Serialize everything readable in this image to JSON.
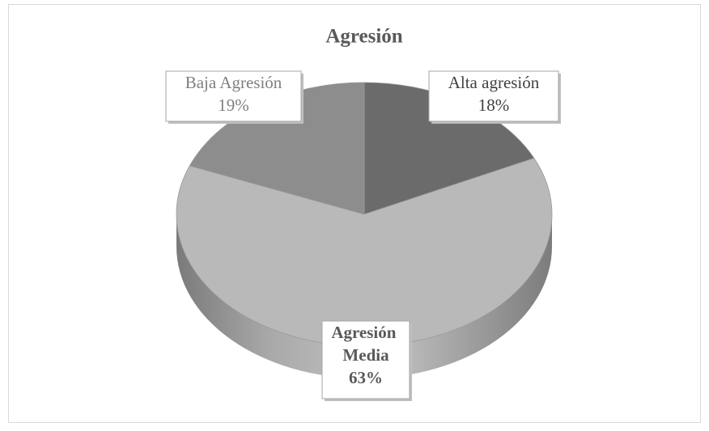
{
  "chart_data": {
    "type": "pie",
    "title": "Agresión",
    "categories": [
      "Alta agresión",
      "Agresión Media",
      "Baja Agresión"
    ],
    "values": [
      18,
      63,
      19
    ],
    "value_labels": [
      "18%",
      "63%",
      "19%"
    ],
    "colors": [
      "#6b6b6b",
      "#b9b9b9",
      "#8d8d8d"
    ]
  }
}
